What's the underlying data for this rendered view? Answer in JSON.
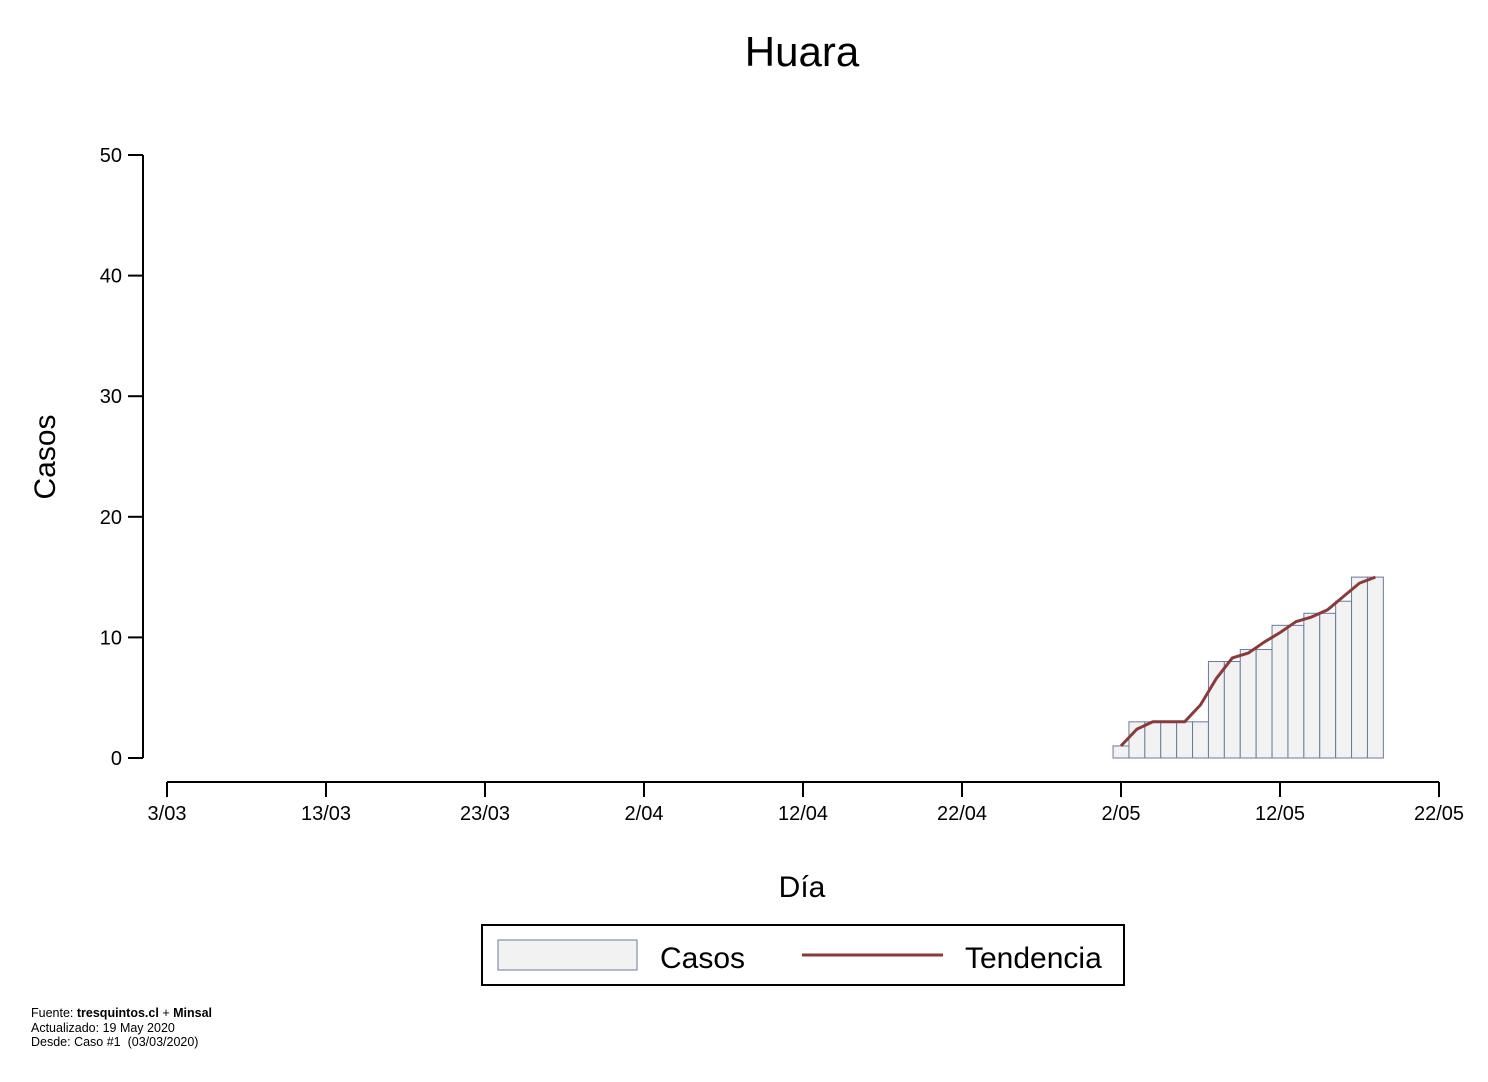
{
  "chart_data": {
    "type": "bar",
    "title": "Huara",
    "xlabel": "Día",
    "ylabel": "Casos",
    "ylim": [
      0,
      50
    ],
    "y_ticks": [
      0,
      10,
      20,
      30,
      40,
      50
    ],
    "x_range": [
      "2020-03-03",
      "2020-05-22"
    ],
    "x_ticks": [
      {
        "date": "2020-03-03",
        "label": "3/03"
      },
      {
        "date": "2020-03-13",
        "label": "13/03"
      },
      {
        "date": "2020-03-23",
        "label": "23/03"
      },
      {
        "date": "2020-04-02",
        "label": "2/04"
      },
      {
        "date": "2020-04-12",
        "label": "12/04"
      },
      {
        "date": "2020-04-22",
        "label": "22/04"
      },
      {
        "date": "2020-05-02",
        "label": "2/05"
      },
      {
        "date": "2020-05-12",
        "label": "12/05"
      },
      {
        "date": "2020-05-22",
        "label": "22/05"
      }
    ],
    "grid": false,
    "legend": {
      "position": "bottom",
      "entries": [
        "Casos",
        "Tendencia"
      ]
    },
    "series": [
      {
        "name": "Casos",
        "type": "bar",
        "color": "#f2f2f2",
        "edge_color": "#6b7a9c",
        "x": [
          "2020-05-02",
          "2020-05-03",
          "2020-05-04",
          "2020-05-05",
          "2020-05-06",
          "2020-05-07",
          "2020-05-08",
          "2020-05-09",
          "2020-05-10",
          "2020-05-11",
          "2020-05-12",
          "2020-05-13",
          "2020-05-14",
          "2020-05-15",
          "2020-05-16",
          "2020-05-17",
          "2020-05-18"
        ],
        "values": [
          1,
          3,
          3,
          3,
          3,
          3,
          8,
          8,
          9,
          9,
          11,
          11,
          12,
          12,
          13,
          15,
          15
        ]
      },
      {
        "name": "Tendencia",
        "type": "line",
        "color": "#8b3a3a",
        "x": [
          "2020-05-02",
          "2020-05-03",
          "2020-05-04",
          "2020-05-05",
          "2020-05-06",
          "2020-05-07",
          "2020-05-08",
          "2020-05-09",
          "2020-05-10",
          "2020-05-11",
          "2020-05-12",
          "2020-05-13",
          "2020-05-14",
          "2020-05-15",
          "2020-05-16",
          "2020-05-17",
          "2020-05-18"
        ],
        "values": [
          1,
          2.4,
          3,
          3,
          3,
          4.4,
          6.6,
          8.3,
          8.7,
          9.6,
          10.4,
          11.3,
          11.7,
          12.3,
          13.4,
          14.5,
          15
        ]
      }
    ]
  },
  "footer": {
    "source_prefix": "Fuente: ",
    "source_site": "tresquintos.cl",
    "source_joiner": " + ",
    "source_org": "Minsal",
    "updated": "Actualizado: 19 May 2020",
    "since": "Desde: Caso #1  (03/03/2020)"
  }
}
